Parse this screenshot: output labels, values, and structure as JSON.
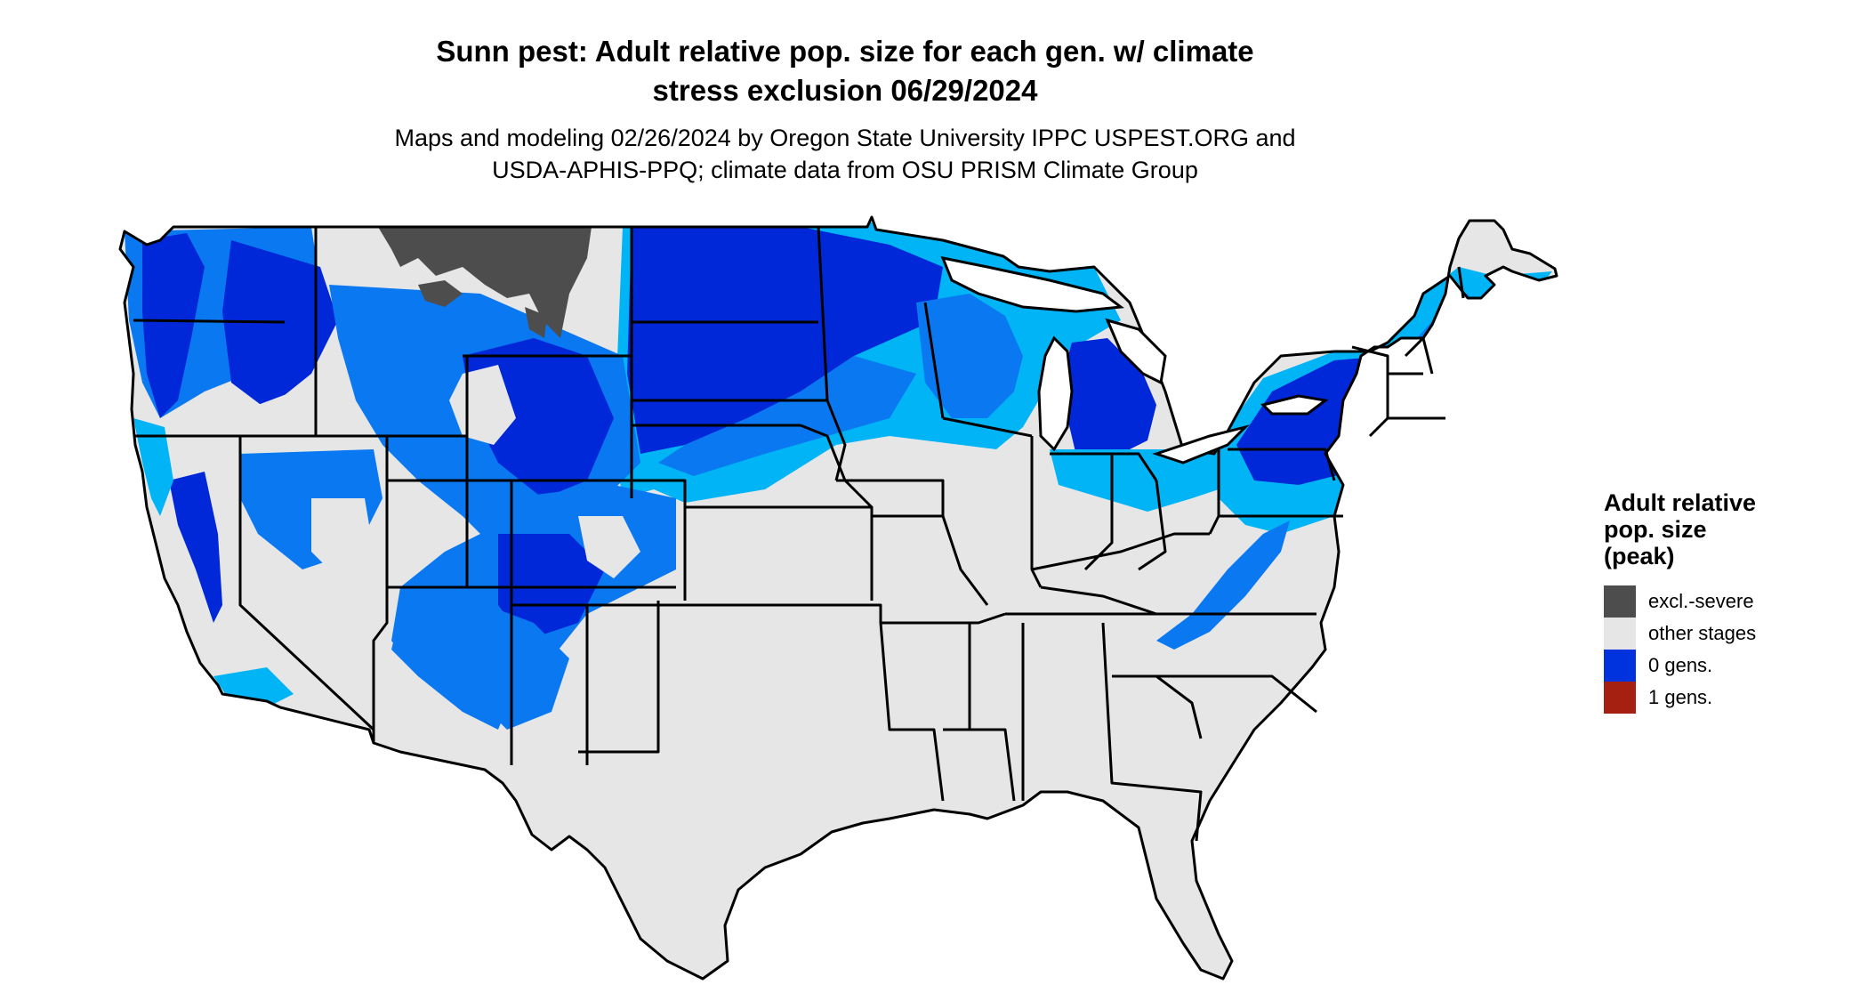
{
  "title": {
    "line1": "Sunn pest: Adult relative pop. size for each gen. w/ climate",
    "line2": "stress exclusion 06/29/2024"
  },
  "subtitle": {
    "line1": "Maps and modeling 02/26/2024 by Oregon State University IPPC USPEST.ORG and",
    "line2": "USDA-APHIS-PPQ; climate data from OSU PRISM Climate Group"
  },
  "legend": {
    "title_lines": [
      "Adult relative",
      "pop. size",
      "(peak)"
    ],
    "items": [
      {
        "label": "excl.-severe",
        "color": "#4d4d4d"
      },
      {
        "label": "other stages",
        "color": "#e6e6e6"
      },
      {
        "label": "0 gens.",
        "color": "#0033dd"
      },
      {
        "label": "1 gens.",
        "color": "#a52010"
      }
    ]
  },
  "map": {
    "region": "contiguous-united-states",
    "colors": {
      "background": "#ffffff",
      "other_stages": "#e6e6e6",
      "zero_gens_dark": "#0028d8",
      "zero_gens_mid": "#0a78f0",
      "zero_gens_light": "#00b4f5",
      "excl_severe": "#4d4d4d",
      "borders": "#000000"
    }
  }
}
